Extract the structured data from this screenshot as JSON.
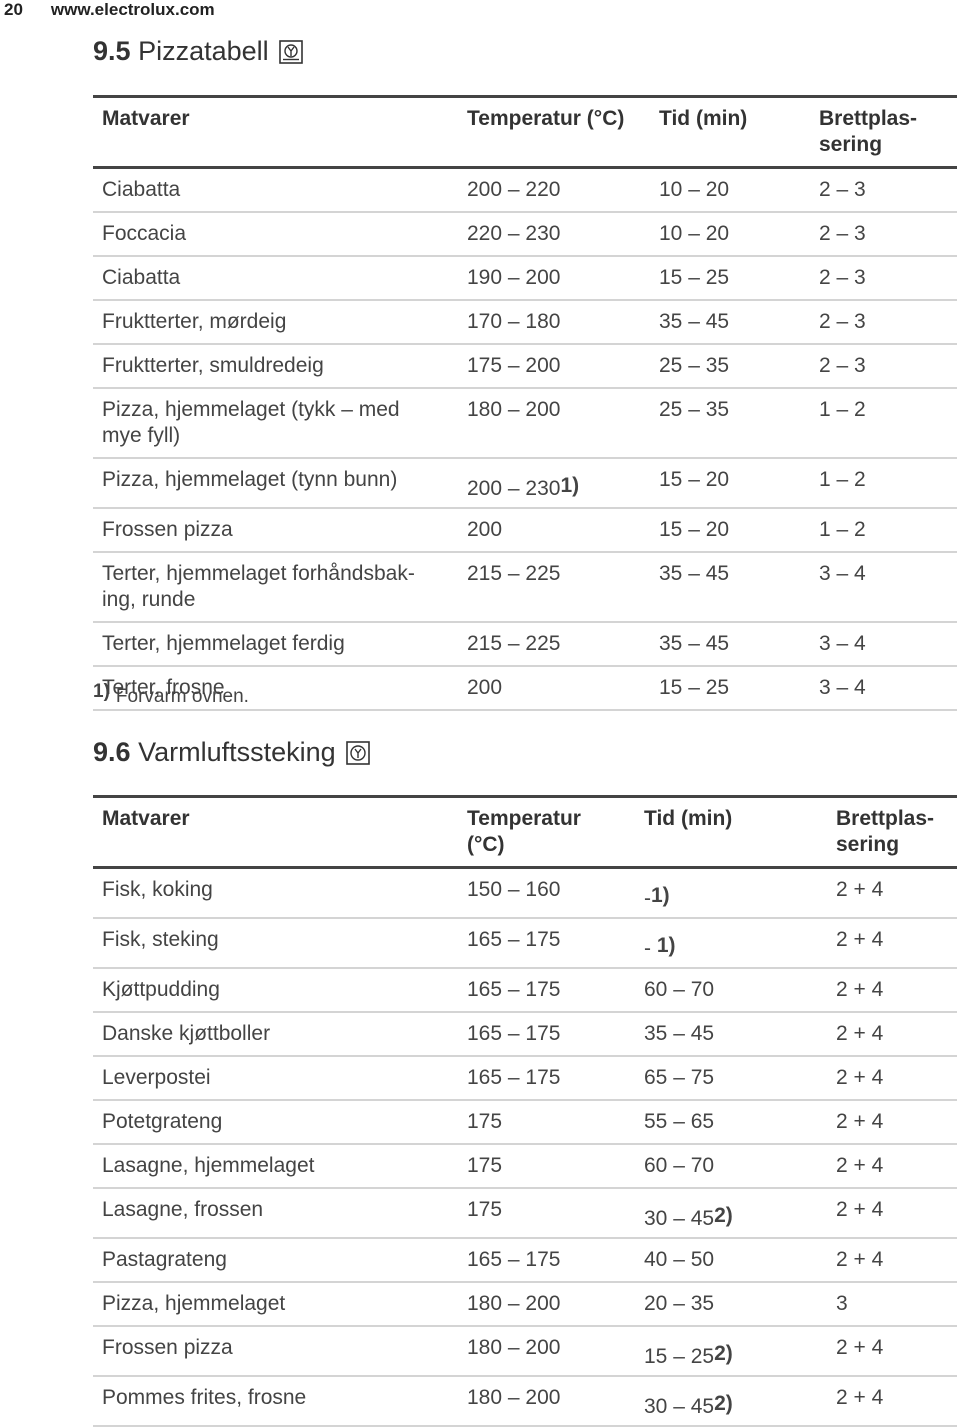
{
  "header": {
    "page_number": "20",
    "site": "www.electrolux.com"
  },
  "sections": [
    {
      "number": "9.5",
      "title": "Pizzatabell",
      "table": {
        "columns": [
          "Matvarer",
          "Temperatur (°C)",
          "Tid (min)",
          "Brettplas-\nsering"
        ],
        "rows": [
          [
            "Ciabatta",
            "200 – 220",
            "10 – 20",
            "2 – 3"
          ],
          [
            "Foccacia",
            "220 – 230",
            "10 – 20",
            "2 – 3"
          ],
          [
            "Ciabatta",
            "190 – 200",
            "15 – 25",
            "2 – 3"
          ],
          [
            "Fruktterter, mørdeig",
            "170 – 180",
            "35 – 45",
            "2 – 3"
          ],
          [
            "Fruktterter, smuldredeig",
            "175 – 200",
            "25 – 35",
            "2 – 3"
          ],
          [
            "Pizza, hjemmelaget (tykk – med\nmye fyll)",
            "180 – 200",
            "25 – 35",
            "1 – 2"
          ],
          [
            "Pizza, hjemmelaget (tynn bunn)",
            {
              "text": "200 – 230",
              "note": "1)"
            },
            "15 – 20",
            "1 – 2"
          ],
          [
            "Frossen pizza",
            "200",
            "15 – 20",
            "1 – 2"
          ],
          [
            "Terter, hjemmelaget forhåndsbak-\ning, runde",
            "215 – 225",
            "35 – 45",
            "3 – 4"
          ],
          [
            "Terter, hjemmelaget ferdig",
            "215 – 225",
            "35 – 45",
            "3 – 4"
          ],
          [
            "Terter, frosne",
            "200",
            "15 – 25",
            "3 – 4"
          ]
        ]
      },
      "footnote": {
        "marker": "1)",
        "text": "Forvarm ovnen."
      }
    },
    {
      "number": "9.6",
      "title": "Varmluftssteking",
      "table": {
        "columns": [
          "Matvarer",
          "Temperatur\n(°C)",
          "Tid (min)",
          "Brettplas-\nsering"
        ],
        "rows": [
          [
            "Fisk, koking",
            "150 – 160",
            {
              "text": "-",
              "note": "1)"
            },
            "2 + 4"
          ],
          [
            "Fisk, steking",
            "165 – 175",
            {
              "text": "- ",
              "note": "1)"
            },
            "2 + 4"
          ],
          [
            "Kjøttpudding",
            "165 – 175",
            "60 – 70",
            "2 + 4"
          ],
          [
            "Danske kjøttboller",
            "165 – 175",
            "35 – 45",
            "2 + 4"
          ],
          [
            "Leverpostei",
            "165 – 175",
            "65 – 75",
            "2 + 4"
          ],
          [
            "Potetgrateng",
            "175",
            "55 – 65",
            "2 + 4"
          ],
          [
            "Lasagne, hjemmelaget",
            "175",
            "60 – 70",
            "2 + 4"
          ],
          [
            "Lasagne, frossen",
            "175",
            {
              "text": "30 – 45",
              "note": "2)"
            },
            "2 + 4"
          ],
          [
            "Pastagrateng",
            "165 – 175",
            "40 – 50",
            "2 + 4"
          ],
          [
            "Pizza, hjemmelaget",
            "180 – 200",
            "20 – 35",
            "3"
          ],
          [
            "Frossen pizza",
            "180 – 200",
            {
              "text": "15 – 25",
              "note": "2)"
            },
            "2 + 4"
          ],
          [
            "Pommes frites, frosne",
            "180 – 200",
            {
              "text": "30 – 45",
              "note": "2)"
            },
            "2 + 4"
          ]
        ]
      }
    }
  ]
}
